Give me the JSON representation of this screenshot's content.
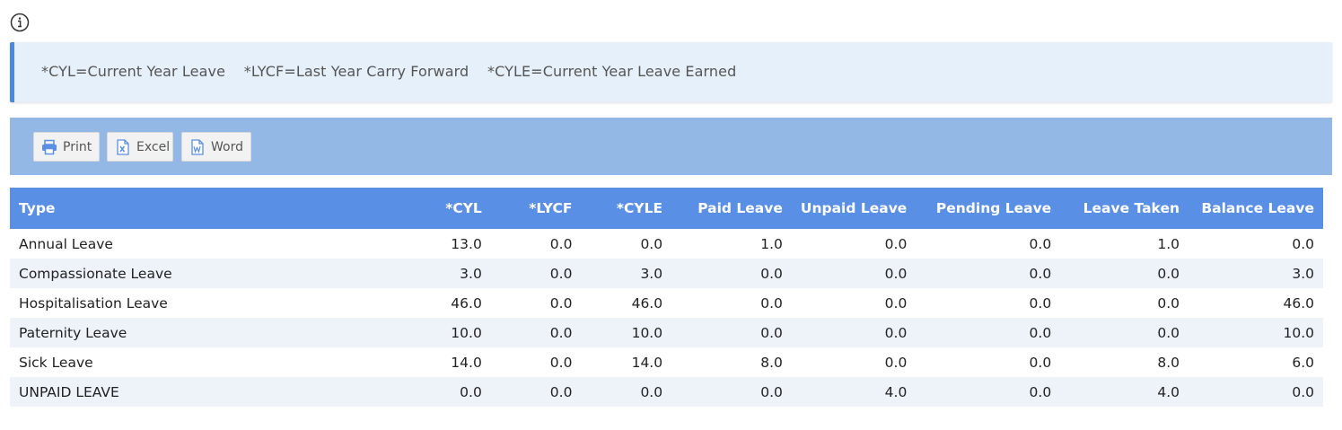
{
  "note": {
    "text": "*CYL=Current Year Leave    *LYCF=Last Year Carry Forward    *CYLE=Current Year Leave Earned"
  },
  "toolbar": {
    "print_label": "Print",
    "excel_label": "Excel",
    "word_label": "Word"
  },
  "table": {
    "headers": [
      "Type",
      "*CYL",
      "*LYCF",
      "*CYLE",
      "Paid Leave",
      "Unpaid Leave",
      "Pending Leave",
      "Leave Taken",
      "Balance Leave"
    ],
    "rows": [
      [
        "Annual Leave",
        "13.0",
        "0.0",
        "0.0",
        "1.0",
        "0.0",
        "0.0",
        "1.0",
        "0.0"
      ],
      [
        "Compassionate Leave",
        "3.0",
        "0.0",
        "3.0",
        "0.0",
        "0.0",
        "0.0",
        "0.0",
        "3.0"
      ],
      [
        "Hospitalisation Leave",
        "46.0",
        "0.0",
        "46.0",
        "0.0",
        "0.0",
        "0.0",
        "0.0",
        "46.0"
      ],
      [
        "Paternity Leave",
        "10.0",
        "0.0",
        "10.0",
        "0.0",
        "0.0",
        "0.0",
        "0.0",
        "10.0"
      ],
      [
        "Sick Leave",
        "14.0",
        "0.0",
        "14.0",
        "8.0",
        "0.0",
        "0.0",
        "8.0",
        "6.0"
      ],
      [
        "UNPAID LEAVE",
        "0.0",
        "0.0",
        "0.0",
        "0.0",
        "4.0",
        "0.0",
        "4.0",
        "0.0"
      ]
    ]
  },
  "icons": {
    "info": "info-circle-icon",
    "print": "printer-icon",
    "excel": "excel-file-icon",
    "word": "word-file-icon"
  },
  "colors": {
    "header_bg": "#5a8fe6",
    "toolbar_bg": "#93b8e6",
    "note_bg": "#e6f0fa",
    "note_accent": "#4a89dc",
    "row_alt": "#eef3fa"
  }
}
